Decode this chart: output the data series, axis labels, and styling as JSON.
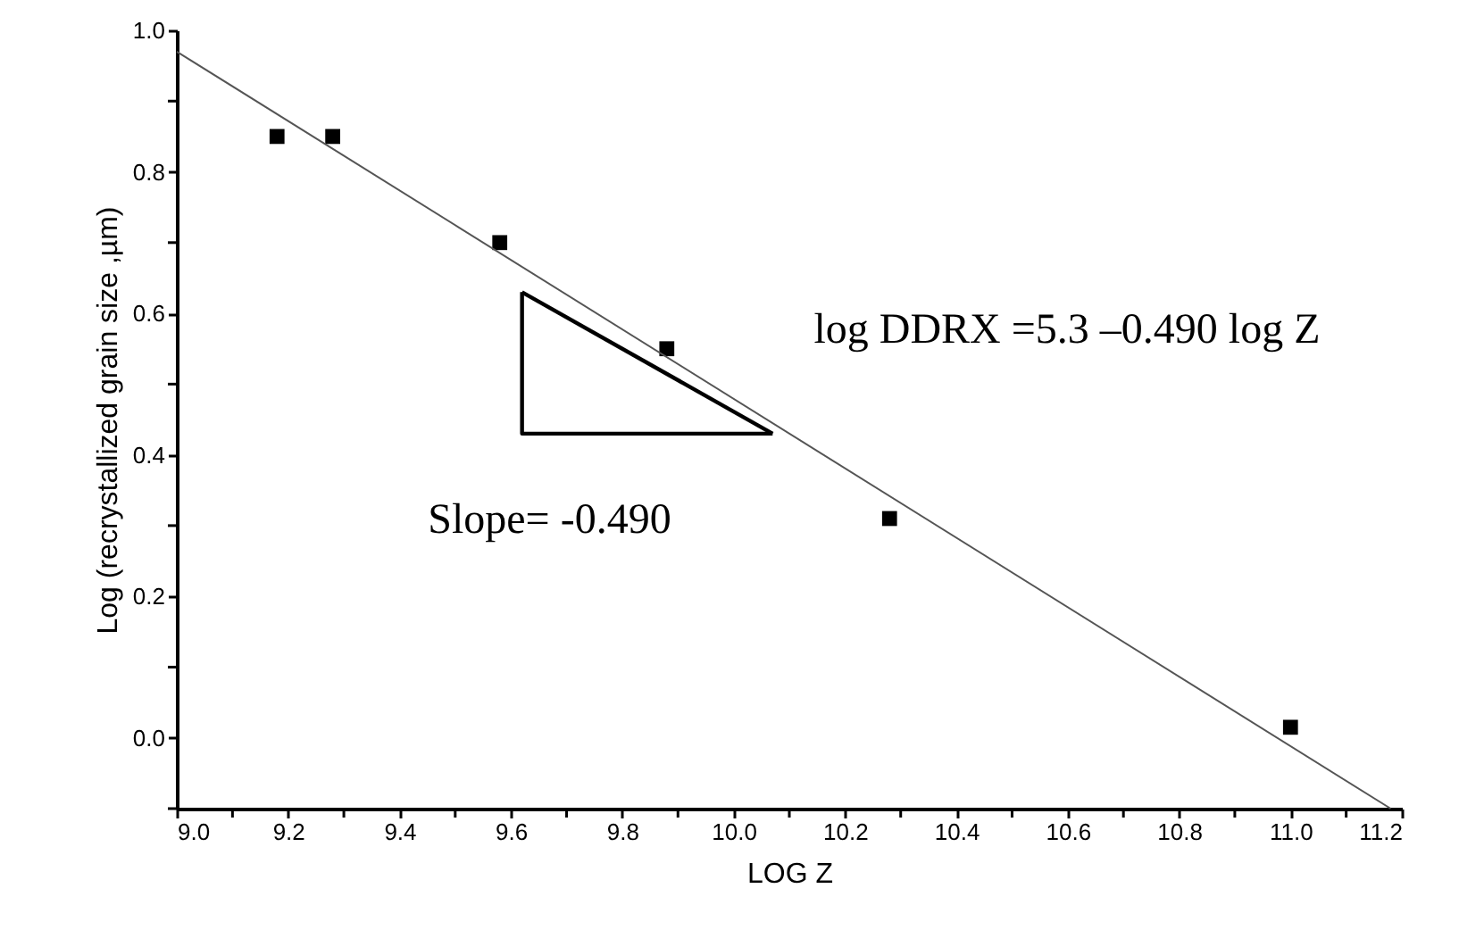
{
  "chart_data": {
    "type": "scatter",
    "xlabel": "LOG Z",
    "ylabel": "Log (recrystallized grain size ,µm)",
    "xlim": [
      9.0,
      11.2
    ],
    "ylim": [
      -0.1,
      1.0
    ],
    "xticks": [
      {
        "value": 9.0,
        "label": "9.0"
      },
      {
        "value": 9.1,
        "label": null
      },
      {
        "value": 9.2,
        "label": "9.2"
      },
      {
        "value": 9.3,
        "label": null
      },
      {
        "value": 9.4,
        "label": "9.4"
      },
      {
        "value": 9.5,
        "label": null
      },
      {
        "value": 9.6,
        "label": "9.6"
      },
      {
        "value": 9.7,
        "label": null
      },
      {
        "value": 9.8,
        "label": "9.8"
      },
      {
        "value": 9.9,
        "label": null
      },
      {
        "value": 10.0,
        "label": "10.0"
      },
      {
        "value": 10.1,
        "label": null
      },
      {
        "value": 10.2,
        "label": "10.2"
      },
      {
        "value": 10.3,
        "label": null
      },
      {
        "value": 10.4,
        "label": "10.4"
      },
      {
        "value": 10.5,
        "label": null
      },
      {
        "value": 10.6,
        "label": "10.6"
      },
      {
        "value": 10.7,
        "label": null
      },
      {
        "value": 10.8,
        "label": "10.8"
      },
      {
        "value": 10.9,
        "label": null
      },
      {
        "value": 11.0,
        "label": "11.0"
      },
      {
        "value": 11.1,
        "label": null
      },
      {
        "value": 11.2,
        "label": "11.2"
      }
    ],
    "yticks": [
      {
        "value": -0.1,
        "label": null
      },
      {
        "value": 0.0,
        "label": "0.0"
      },
      {
        "value": 0.1,
        "label": null
      },
      {
        "value": 0.2,
        "label": "0.2"
      },
      {
        "value": 0.3,
        "label": null
      },
      {
        "value": 0.4,
        "label": "0.4"
      },
      {
        "value": 0.5,
        "label": null
      },
      {
        "value": 0.6,
        "label": "0.6"
      },
      {
        "value": 0.7,
        "label": null
      },
      {
        "value": 0.8,
        "label": "0.8"
      },
      {
        "value": 0.9,
        "label": null
      },
      {
        "value": 1.0,
        "label": "1.0"
      }
    ],
    "marker": "square",
    "grid": false,
    "series": [
      {
        "type": "scatter",
        "color": "#000000",
        "x": [
          9.18,
          9.28,
          9.58,
          9.88,
          10.28,
          11.0
        ],
        "values": [
          0.85,
          0.85,
          0.7,
          0.55,
          0.31,
          0.015
        ]
      },
      {
        "type": "line",
        "color": "#555555",
        "marker": "none",
        "line_style": "solid",
        "x": [
          9.0,
          11.18
        ],
        "values": [
          0.97,
          -0.1
        ]
      },
      {
        "type": "line",
        "color": "#000000",
        "marker": "none",
        "line_style": "solid",
        "x": [
          9.62,
          9.62,
          10.07
        ],
        "values": [
          0.63,
          0.43,
          0.43
        ]
      },
      {
        "type": "line",
        "color": "#000000",
        "marker": "none",
        "line_style": "solid",
        "x": [
          9.62,
          10.07
        ],
        "values": [
          0.63,
          0.43
        ]
      }
    ],
    "annotations": [
      "Slope= -0.490",
      "log DDRX =5.3 –0.490 log Z"
    ]
  }
}
